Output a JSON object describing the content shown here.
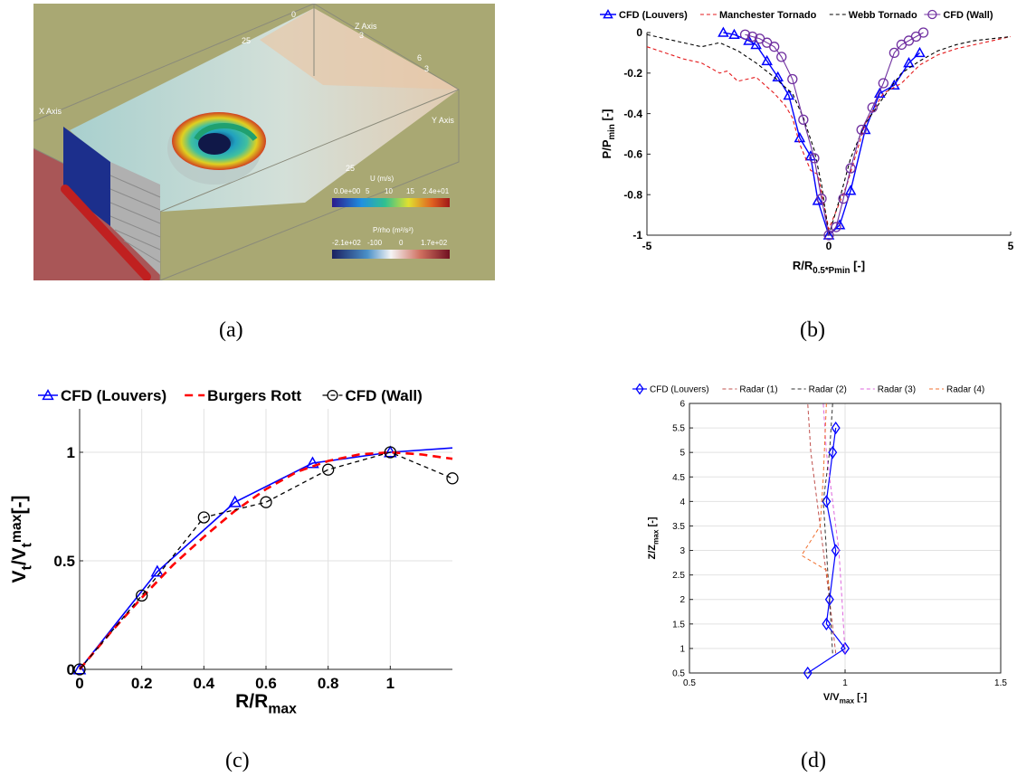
{
  "panel_labels": {
    "a": "(a)",
    "b": "(b)",
    "c": "(c)",
    "d": "(d)"
  },
  "panel_a": {
    "axis_labels": {
      "x": "X Axis",
      "y": "Y Axis",
      "z": "Z Axis"
    },
    "tick_labels": {
      "z0": "0",
      "z3": "3",
      "x25_top": "25",
      "x25_mid": "25",
      "y6": "6",
      "y3": "3"
    },
    "colorbar_u": {
      "title": "U (m/s)",
      "ticks": [
        "0.0e+00",
        "5",
        "10",
        "15",
        "2.4e+01"
      ]
    },
    "colorbar_p": {
      "title": "P/rho (m²/s²)",
      "ticks": [
        "-2.1e+02",
        "-100",
        "0",
        "1.7e+02"
      ]
    },
    "colors": {
      "background": "#a9a873",
      "floor": "#cfe0e2",
      "wall": "#a84c54",
      "louver": "#1c2f8c"
    }
  },
  "chart_data": [
    {
      "id": "b",
      "type": "line",
      "xlim": [
        -5,
        5
      ],
      "ylim": [
        -1,
        0
      ],
      "xticks": [
        -5,
        0,
        5
      ],
      "yticks": [
        -1,
        -0.8,
        -0.6,
        -0.4,
        -0.2,
        0
      ],
      "grid": false,
      "legend_placement": "top",
      "xlabel": {
        "main": "R/R",
        "sub": "0.5*Pmin",
        "suffix": " [-]"
      },
      "ylabel": {
        "main": "P/P",
        "sub": "min",
        "suffix": " [-]"
      },
      "series": [
        {
          "name": "CFD (Louvers)",
          "color": "#0000ff",
          "marker": "triangle",
          "dash": "solid",
          "x": [
            -2.9,
            -2.6,
            -2.2,
            -2.0,
            -1.7,
            -1.4,
            -1.1,
            -0.8,
            -0.5,
            -0.3,
            0,
            0.3,
            0.6,
            1.0,
            1.4,
            1.8,
            2.2,
            2.5
          ],
          "y": [
            0,
            -0.01,
            -0.04,
            -0.06,
            -0.14,
            -0.22,
            -0.31,
            -0.52,
            -0.61,
            -0.83,
            -1.0,
            -0.95,
            -0.78,
            -0.48,
            -0.3,
            -0.26,
            -0.15,
            -0.1
          ]
        },
        {
          "name": "Manchester Tornado",
          "color": "#e41a1c",
          "marker": "none",
          "dash": "4,3",
          "x": [
            -5,
            -4.5,
            -4,
            -3.5,
            -3,
            -2.8,
            -2.5,
            -2,
            -1.5,
            -1.2,
            -1,
            -0.8,
            -0.5,
            -0.3,
            0,
            0.5,
            1,
            1.5,
            2,
            2.5,
            3,
            3.5,
            4,
            4.5,
            5
          ],
          "y": [
            -0.07,
            -0.1,
            -0.13,
            -0.15,
            -0.2,
            -0.19,
            -0.24,
            -0.22,
            -0.3,
            -0.36,
            -0.42,
            -0.55,
            -0.68,
            -0.7,
            -0.97,
            -0.75,
            -0.45,
            -0.3,
            -0.25,
            -0.16,
            -0.11,
            -0.08,
            -0.06,
            -0.04,
            -0.02
          ]
        },
        {
          "name": "Webb Tornado",
          "color": "#000000",
          "marker": "none",
          "dash": "4,3",
          "x": [
            -5,
            -4.5,
            -4,
            -3.5,
            -3,
            -2.5,
            -2,
            -1.5,
            -1.2,
            -1,
            -0.7,
            -0.4,
            -0.2,
            0,
            0.3,
            0.6,
            1,
            1.5,
            2,
            2.5,
            3,
            3.5,
            4,
            4.5,
            5
          ],
          "y": [
            -0.01,
            -0.03,
            -0.05,
            -0.07,
            -0.05,
            -0.09,
            -0.15,
            -0.22,
            -0.27,
            -0.3,
            -0.42,
            -0.58,
            -0.75,
            -1.0,
            -0.82,
            -0.62,
            -0.45,
            -0.32,
            -0.2,
            -0.14,
            -0.09,
            -0.06,
            -0.04,
            -0.03,
            -0.02
          ]
        },
        {
          "name": "CFD (Wall)",
          "color": "#7030a0",
          "marker": "circle",
          "dash": "solid",
          "x": [
            -2.3,
            -2.1,
            -1.9,
            -1.7,
            -1.5,
            -1.3,
            -1.0,
            -0.7,
            -0.4,
            -0.2,
            0,
            0.2,
            0.4,
            0.6,
            0.9,
            1.2,
            1.5,
            1.8,
            2.0,
            2.2,
            2.4,
            2.6
          ],
          "y": [
            -0.01,
            -0.02,
            -0.03,
            -0.05,
            -0.07,
            -0.12,
            -0.23,
            -0.43,
            -0.62,
            -0.82,
            -1.0,
            -0.96,
            -0.82,
            -0.67,
            -0.48,
            -0.37,
            -0.25,
            -0.1,
            -0.06,
            -0.04,
            -0.02,
            0
          ]
        }
      ]
    },
    {
      "id": "c",
      "type": "line",
      "xlim": [
        0,
        1.2
      ],
      "ylim": [
        0,
        1.2
      ],
      "xticks": [
        0,
        0.2,
        0.4,
        0.6,
        0.8,
        1
      ],
      "yticks": [
        0,
        0.5,
        1
      ],
      "grid": true,
      "legend_placement": "top",
      "xlabel": {
        "main": "R/R",
        "sub": "max",
        "suffix": ""
      },
      "ylabel": {
        "main": "V",
        "sub": "t",
        "mid": "/V",
        "sub2": "t",
        "sup": "max",
        "suffix": "[-]"
      },
      "series": [
        {
          "name": "CFD (Louvers)",
          "color": "#0000ff",
          "marker": "triangle",
          "dash": "solid",
          "x": [
            0,
            0.25,
            0.5,
            0.75,
            1.0,
            1.2
          ],
          "y": [
            0,
            0.45,
            0.77,
            0.95,
            1.0,
            1.02
          ],
          "marker_x": [
            0,
            0.25,
            0.5,
            0.75,
            1.0
          ],
          "marker_y": [
            0,
            0.45,
            0.77,
            0.95,
            1.0
          ]
        },
        {
          "name": "Burgers Rott",
          "color": "#ff0000",
          "marker": "none",
          "dash": "9,6",
          "x": [
            0,
            0.1,
            0.2,
            0.3,
            0.4,
            0.5,
            0.6,
            0.7,
            0.8,
            0.9,
            1.0,
            1.1,
            1.2
          ],
          "y": [
            0,
            0.17,
            0.33,
            0.48,
            0.61,
            0.73,
            0.83,
            0.91,
            0.96,
            0.99,
            1.0,
            0.99,
            0.97
          ]
        },
        {
          "name": "CFD (Wall)",
          "color": "#000000",
          "marker": "circle",
          "dash": "5,4",
          "x": [
            0,
            0.2,
            0.4,
            0.6,
            0.8,
            1.0,
            1.2
          ],
          "y": [
            0,
            0.34,
            0.7,
            0.77,
            0.92,
            1.0,
            0.88
          ]
        }
      ]
    },
    {
      "id": "d",
      "type": "line",
      "xlim": [
        0.5,
        1.5
      ],
      "ylim": [
        0.5,
        6
      ],
      "xticks": [
        0.5,
        1,
        1.5
      ],
      "yticks": [
        0.5,
        1,
        1.5,
        2,
        2.5,
        3,
        3.5,
        4,
        4.5,
        5,
        5.5,
        6
      ],
      "grid": true,
      "legend_placement": "top",
      "xlabel": {
        "main": "V/V",
        "sub": "max",
        "suffix": " [-]"
      },
      "ylabel": {
        "main": "Z/Z",
        "sub": "max",
        "suffix": " [-]"
      },
      "series": [
        {
          "name": "CFD (Louvers)",
          "color": "#0000ff",
          "marker": "diamond",
          "dash": "solid",
          "x": [
            0.88,
            1.0,
            0.94,
            0.95,
            0.97,
            0.94,
            0.96,
            0.97
          ],
          "y": [
            0.5,
            1.0,
            1.5,
            2.0,
            3.0,
            4.0,
            5.0,
            5.5
          ]
        },
        {
          "name": "Radar (1)",
          "color": "#c0504d",
          "marker": "none",
          "dash": "4,3",
          "x": [
            0.97,
            0.95,
            0.93,
            0.91,
            0.89,
            0.88
          ],
          "y": [
            0.9,
            2.0,
            3.0,
            4.0,
            5.0,
            6.0
          ]
        },
        {
          "name": "Radar (2)",
          "color": "#333333",
          "marker": "none",
          "dash": "4,3",
          "x": [
            0.96,
            0.95,
            0.94,
            0.93,
            0.95,
            0.96
          ],
          "y": [
            0.9,
            2.0,
            3.0,
            4.0,
            5.0,
            6.0
          ]
        },
        {
          "name": "Radar (3)",
          "color": "#dd66dd",
          "marker": "none",
          "dash": "4,3",
          "x": [
            1.0,
            0.99,
            0.98,
            0.96,
            0.94,
            0.93
          ],
          "y": [
            0.9,
            2.0,
            3.0,
            4.0,
            5.0,
            6.0
          ]
        },
        {
          "name": "Radar (4)",
          "color": "#f07030",
          "marker": "none",
          "dash": "4,3",
          "x": [
            0.95,
            0.94,
            0.86,
            0.92,
            0.93,
            0.94
          ],
          "y": [
            2.2,
            2.6,
            2.9,
            3.5,
            4.5,
            6.0
          ]
        }
      ]
    }
  ]
}
